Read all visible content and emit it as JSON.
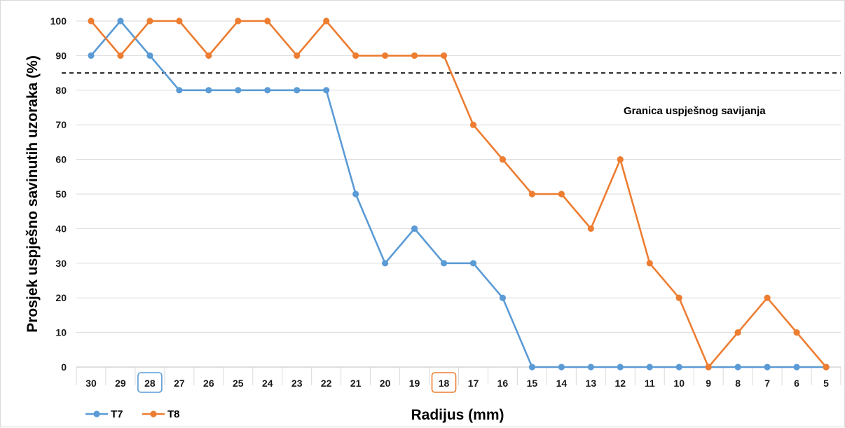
{
  "chart_data": {
    "type": "line",
    "title": "",
    "xlabel": "Radijus (mm)",
    "ylabel": "Prosjek  uspješno savinutih uzoraka (%)",
    "ylim": [
      0,
      100
    ],
    "yticks": [
      0,
      10,
      20,
      30,
      40,
      50,
      60,
      70,
      80,
      90,
      100
    ],
    "grid": "horizontal",
    "legend_position": "bottom-left",
    "categories": [
      "30",
      "29",
      "28",
      "27",
      "26",
      "25",
      "24",
      "23",
      "22",
      "21",
      "20",
      "19",
      "18",
      "17",
      "16",
      "15",
      "14",
      "13",
      "12",
      "11",
      "10",
      "9",
      "8",
      "7",
      "6",
      "5"
    ],
    "series": [
      {
        "name": "T7",
        "color": "#5b9bd5",
        "values": [
          90,
          100,
          90,
          80,
          80,
          80,
          80,
          80,
          80,
          50,
          30,
          40,
          30,
          30,
          20,
          0,
          0,
          0,
          0,
          0,
          0,
          0,
          0,
          0,
          0,
          0
        ]
      },
      {
        "name": "T8",
        "color": "#ed7d31",
        "values": [
          100,
          90,
          100,
          100,
          90,
          100,
          100,
          90,
          100,
          90,
          90,
          90,
          90,
          70,
          60,
          50,
          50,
          40,
          60,
          30,
          20,
          0,
          10,
          20,
          10,
          0
        ]
      }
    ],
    "threshold": {
      "value": 85,
      "label": "Granica uspješnog savijanja",
      "style": "dashed",
      "color": "#000000"
    },
    "highlighted_categories": [
      {
        "category": "28",
        "color": "#5b9bd5"
      },
      {
        "category": "18",
        "color": "#ed7d31"
      }
    ]
  }
}
